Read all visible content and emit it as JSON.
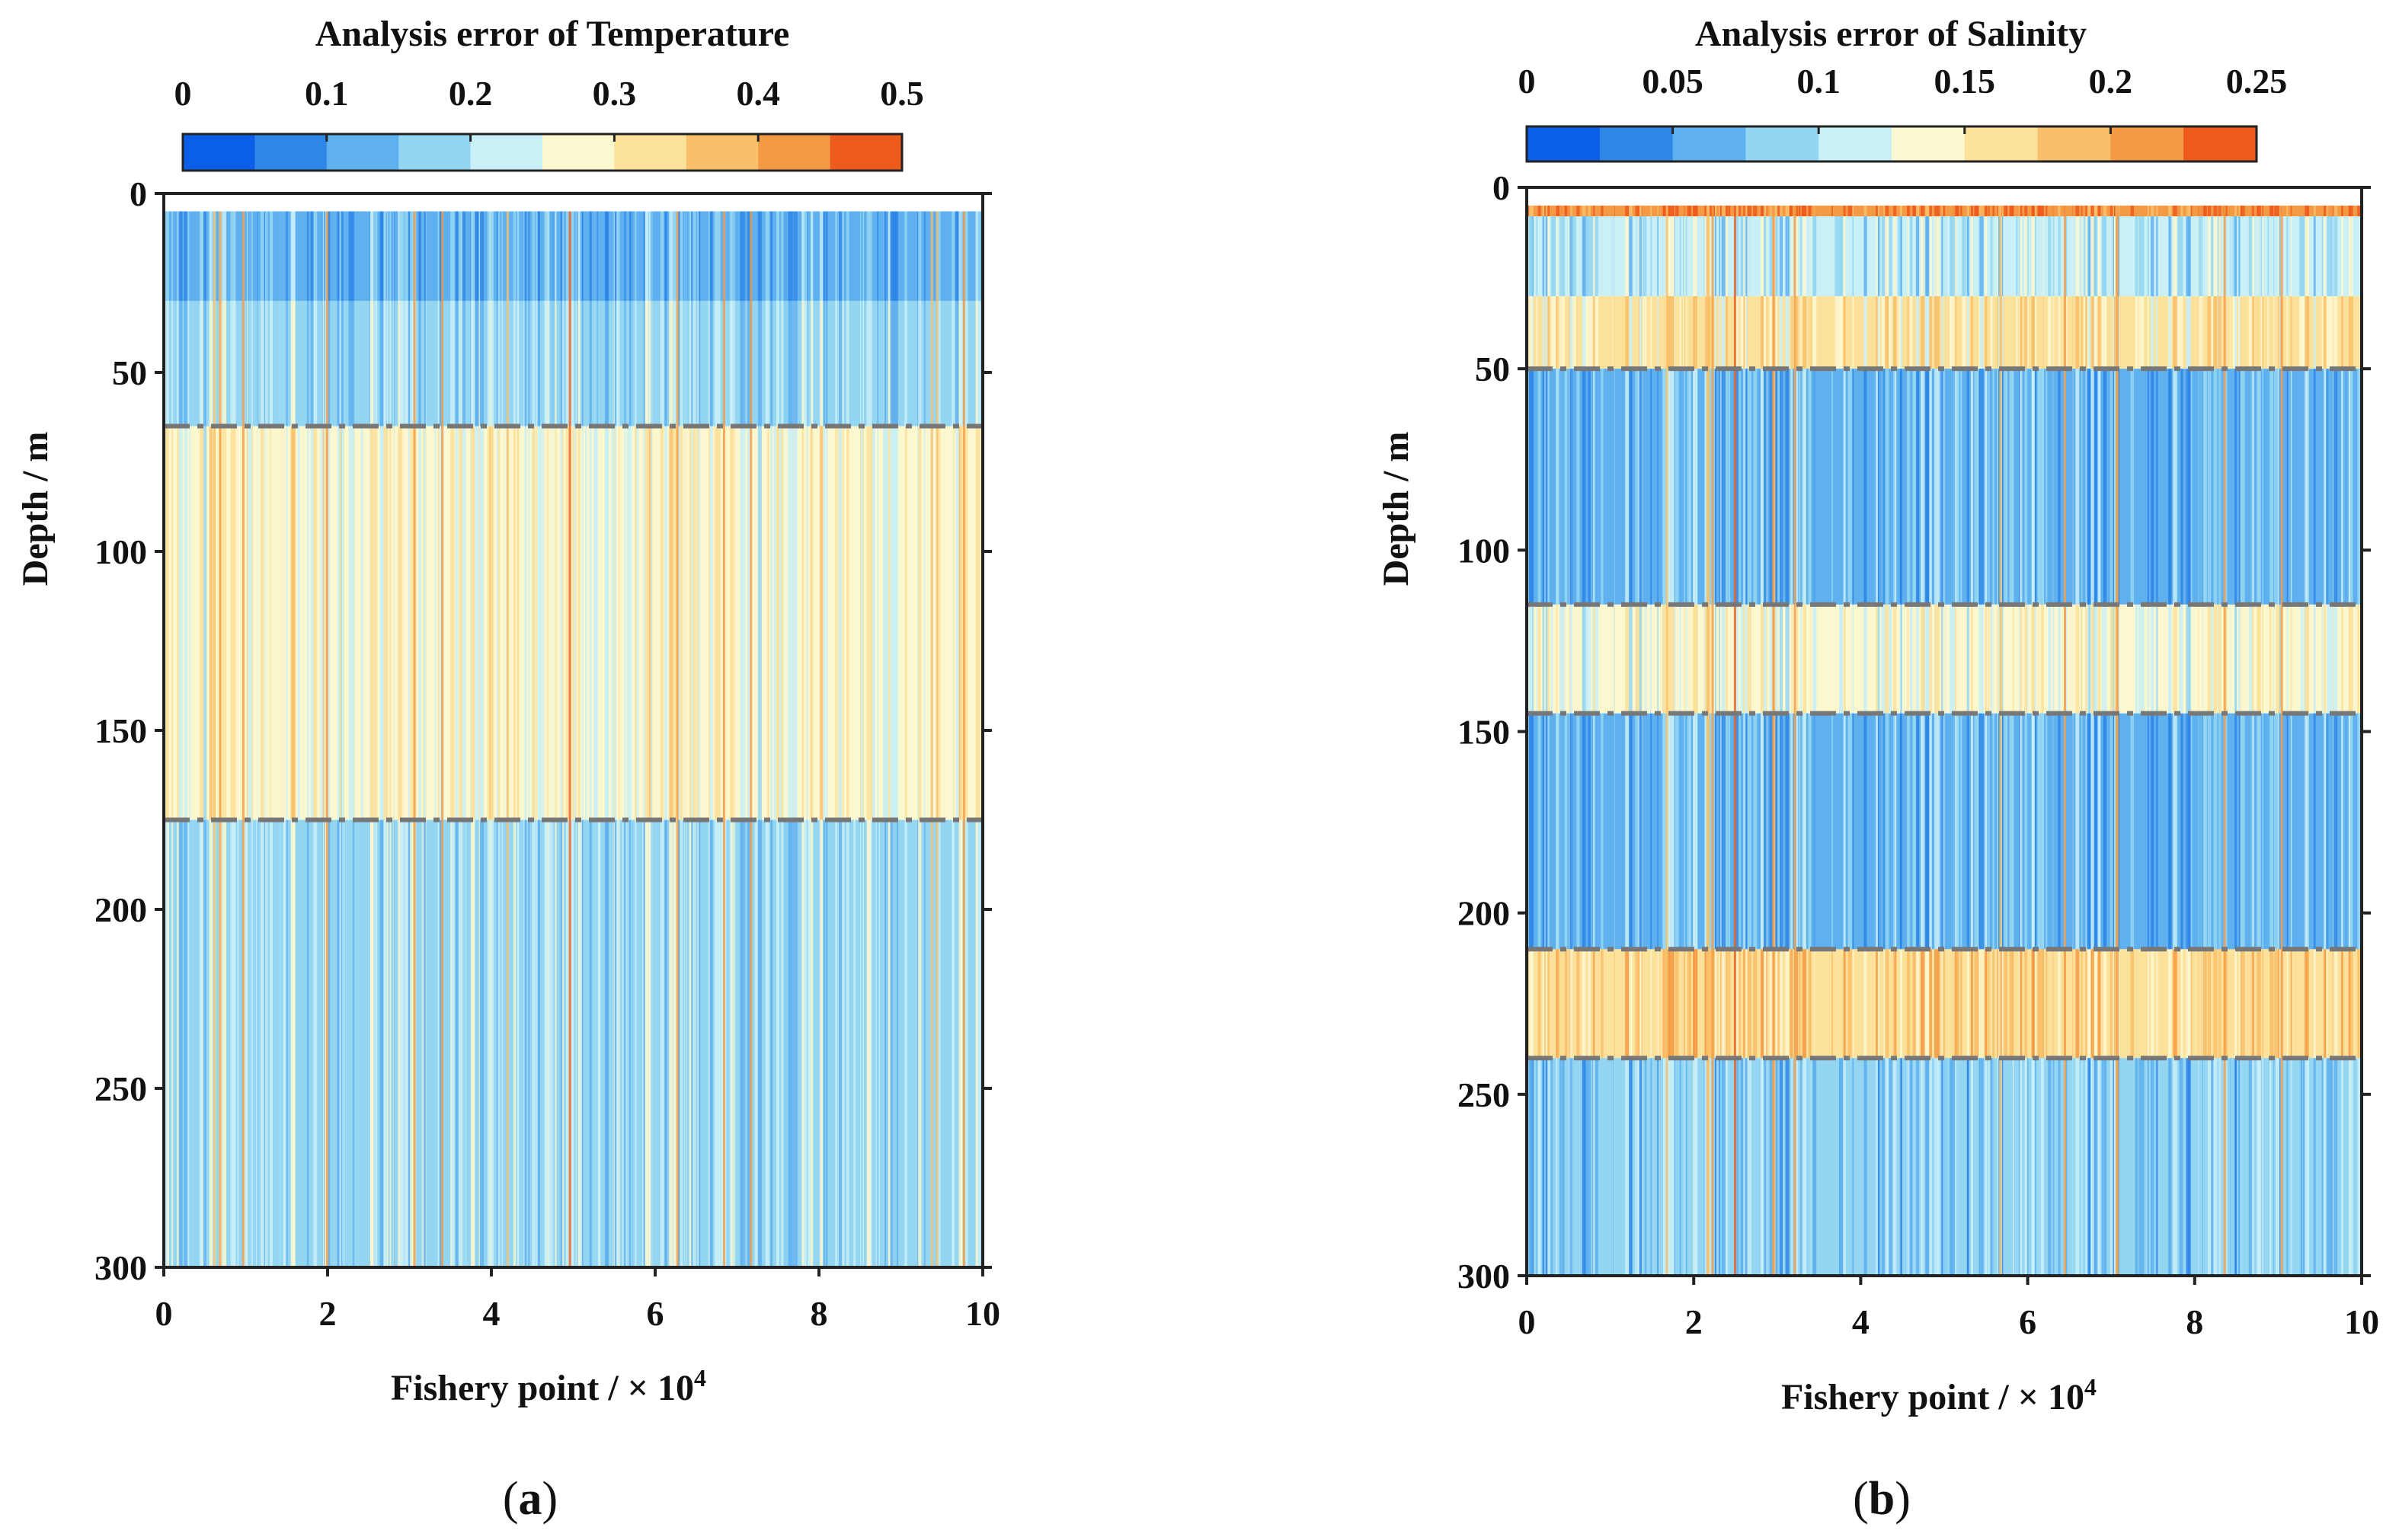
{
  "chart_data": [
    {
      "type": "heatmap",
      "panel_label": "a",
      "title": "Analysis error of Temperature",
      "colorbar": {
        "min": 0,
        "max": 0.5,
        "ticks": [
          "0",
          "0.1",
          "0.2",
          "0.3",
          "0.4",
          "0.5"
        ],
        "tick_values": [
          0,
          0.1,
          0.2,
          0.3,
          0.4,
          0.5
        ],
        "colors": [
          "#0a5ee8",
          "#2e86e6",
          "#5fb0ee",
          "#94d6f2",
          "#c9f0f7",
          "#fbf7cf",
          "#fbe19a",
          "#f8c06a",
          "#f49a44",
          "#ec5a1c"
        ]
      },
      "xlabel": "Fishery point / × 10",
      "xlabel_sup": "4",
      "ylabel": "Depth / m",
      "xlim": [
        0,
        10
      ],
      "ylim": [
        0,
        300
      ],
      "y_reversed": true,
      "xticks": [
        "0",
        "2",
        "4",
        "6",
        "8",
        "10"
      ],
      "xtick_values": [
        0,
        2,
        4,
        6,
        8,
        10
      ],
      "yticks": [
        "0",
        "50",
        "100",
        "150",
        "200",
        "250",
        "300"
      ],
      "ytick_values": [
        0,
        50,
        100,
        150,
        200,
        250,
        300
      ],
      "data_top_depth": 5,
      "layers": [
        {
          "depth_top": 5,
          "depth_bottom": 30,
          "error": 0.13
        },
        {
          "depth_top": 30,
          "depth_bottom": 65,
          "error": 0.18
        },
        {
          "depth_top": 65,
          "depth_bottom": 175,
          "error": 0.27
        },
        {
          "depth_top": 175,
          "depth_bottom": 300,
          "error": 0.19
        }
      ],
      "dashed_lines_depth": [
        65,
        175
      ]
    },
    {
      "type": "heatmap",
      "panel_label": "b",
      "title": "Analysis error of Salinity",
      "colorbar": {
        "min": 0,
        "max": 0.25,
        "ticks": [
          "0",
          "0.05",
          "0.1",
          "0.15",
          "0.2",
          "0.25"
        ],
        "tick_values": [
          0,
          0.05,
          0.1,
          0.15,
          0.2,
          0.25
        ],
        "colors": [
          "#0a5ee8",
          "#2e86e6",
          "#5fb0ee",
          "#94d6f2",
          "#c9f0f7",
          "#fbf7cf",
          "#fbe19a",
          "#f8c06a",
          "#f49a44",
          "#ec5a1c"
        ]
      },
      "xlabel": "Fishery point / × 10",
      "xlabel_sup": "4",
      "ylabel": "Depth / m",
      "xlim": [
        0,
        10
      ],
      "ylim": [
        0,
        300
      ],
      "y_reversed": true,
      "xticks": [
        "0",
        "2",
        "4",
        "6",
        "8",
        "10"
      ],
      "xtick_values": [
        0,
        2,
        4,
        6,
        8,
        10
      ],
      "yticks": [
        "0",
        "50",
        "100",
        "150",
        "200",
        "250",
        "300"
      ],
      "ytick_values": [
        0,
        50,
        100,
        150,
        200,
        250,
        300
      ],
      "data_top_depth": 5,
      "layers": [
        {
          "depth_top": 5,
          "depth_bottom": 8,
          "error": 0.22
        },
        {
          "depth_top": 8,
          "depth_bottom": 30,
          "error": 0.1
        },
        {
          "depth_top": 30,
          "depth_bottom": 50,
          "error": 0.15
        },
        {
          "depth_top": 50,
          "depth_bottom": 115,
          "error": 0.07
        },
        {
          "depth_top": 115,
          "depth_bottom": 145,
          "error": 0.13
        },
        {
          "depth_top": 145,
          "depth_bottom": 210,
          "error": 0.07
        },
        {
          "depth_top": 210,
          "depth_bottom": 240,
          "error": 0.17
        },
        {
          "depth_top": 240,
          "depth_bottom": 300,
          "error": 0.08
        }
      ],
      "dashed_lines_depth": [
        50,
        115,
        145,
        210,
        240
      ]
    }
  ]
}
